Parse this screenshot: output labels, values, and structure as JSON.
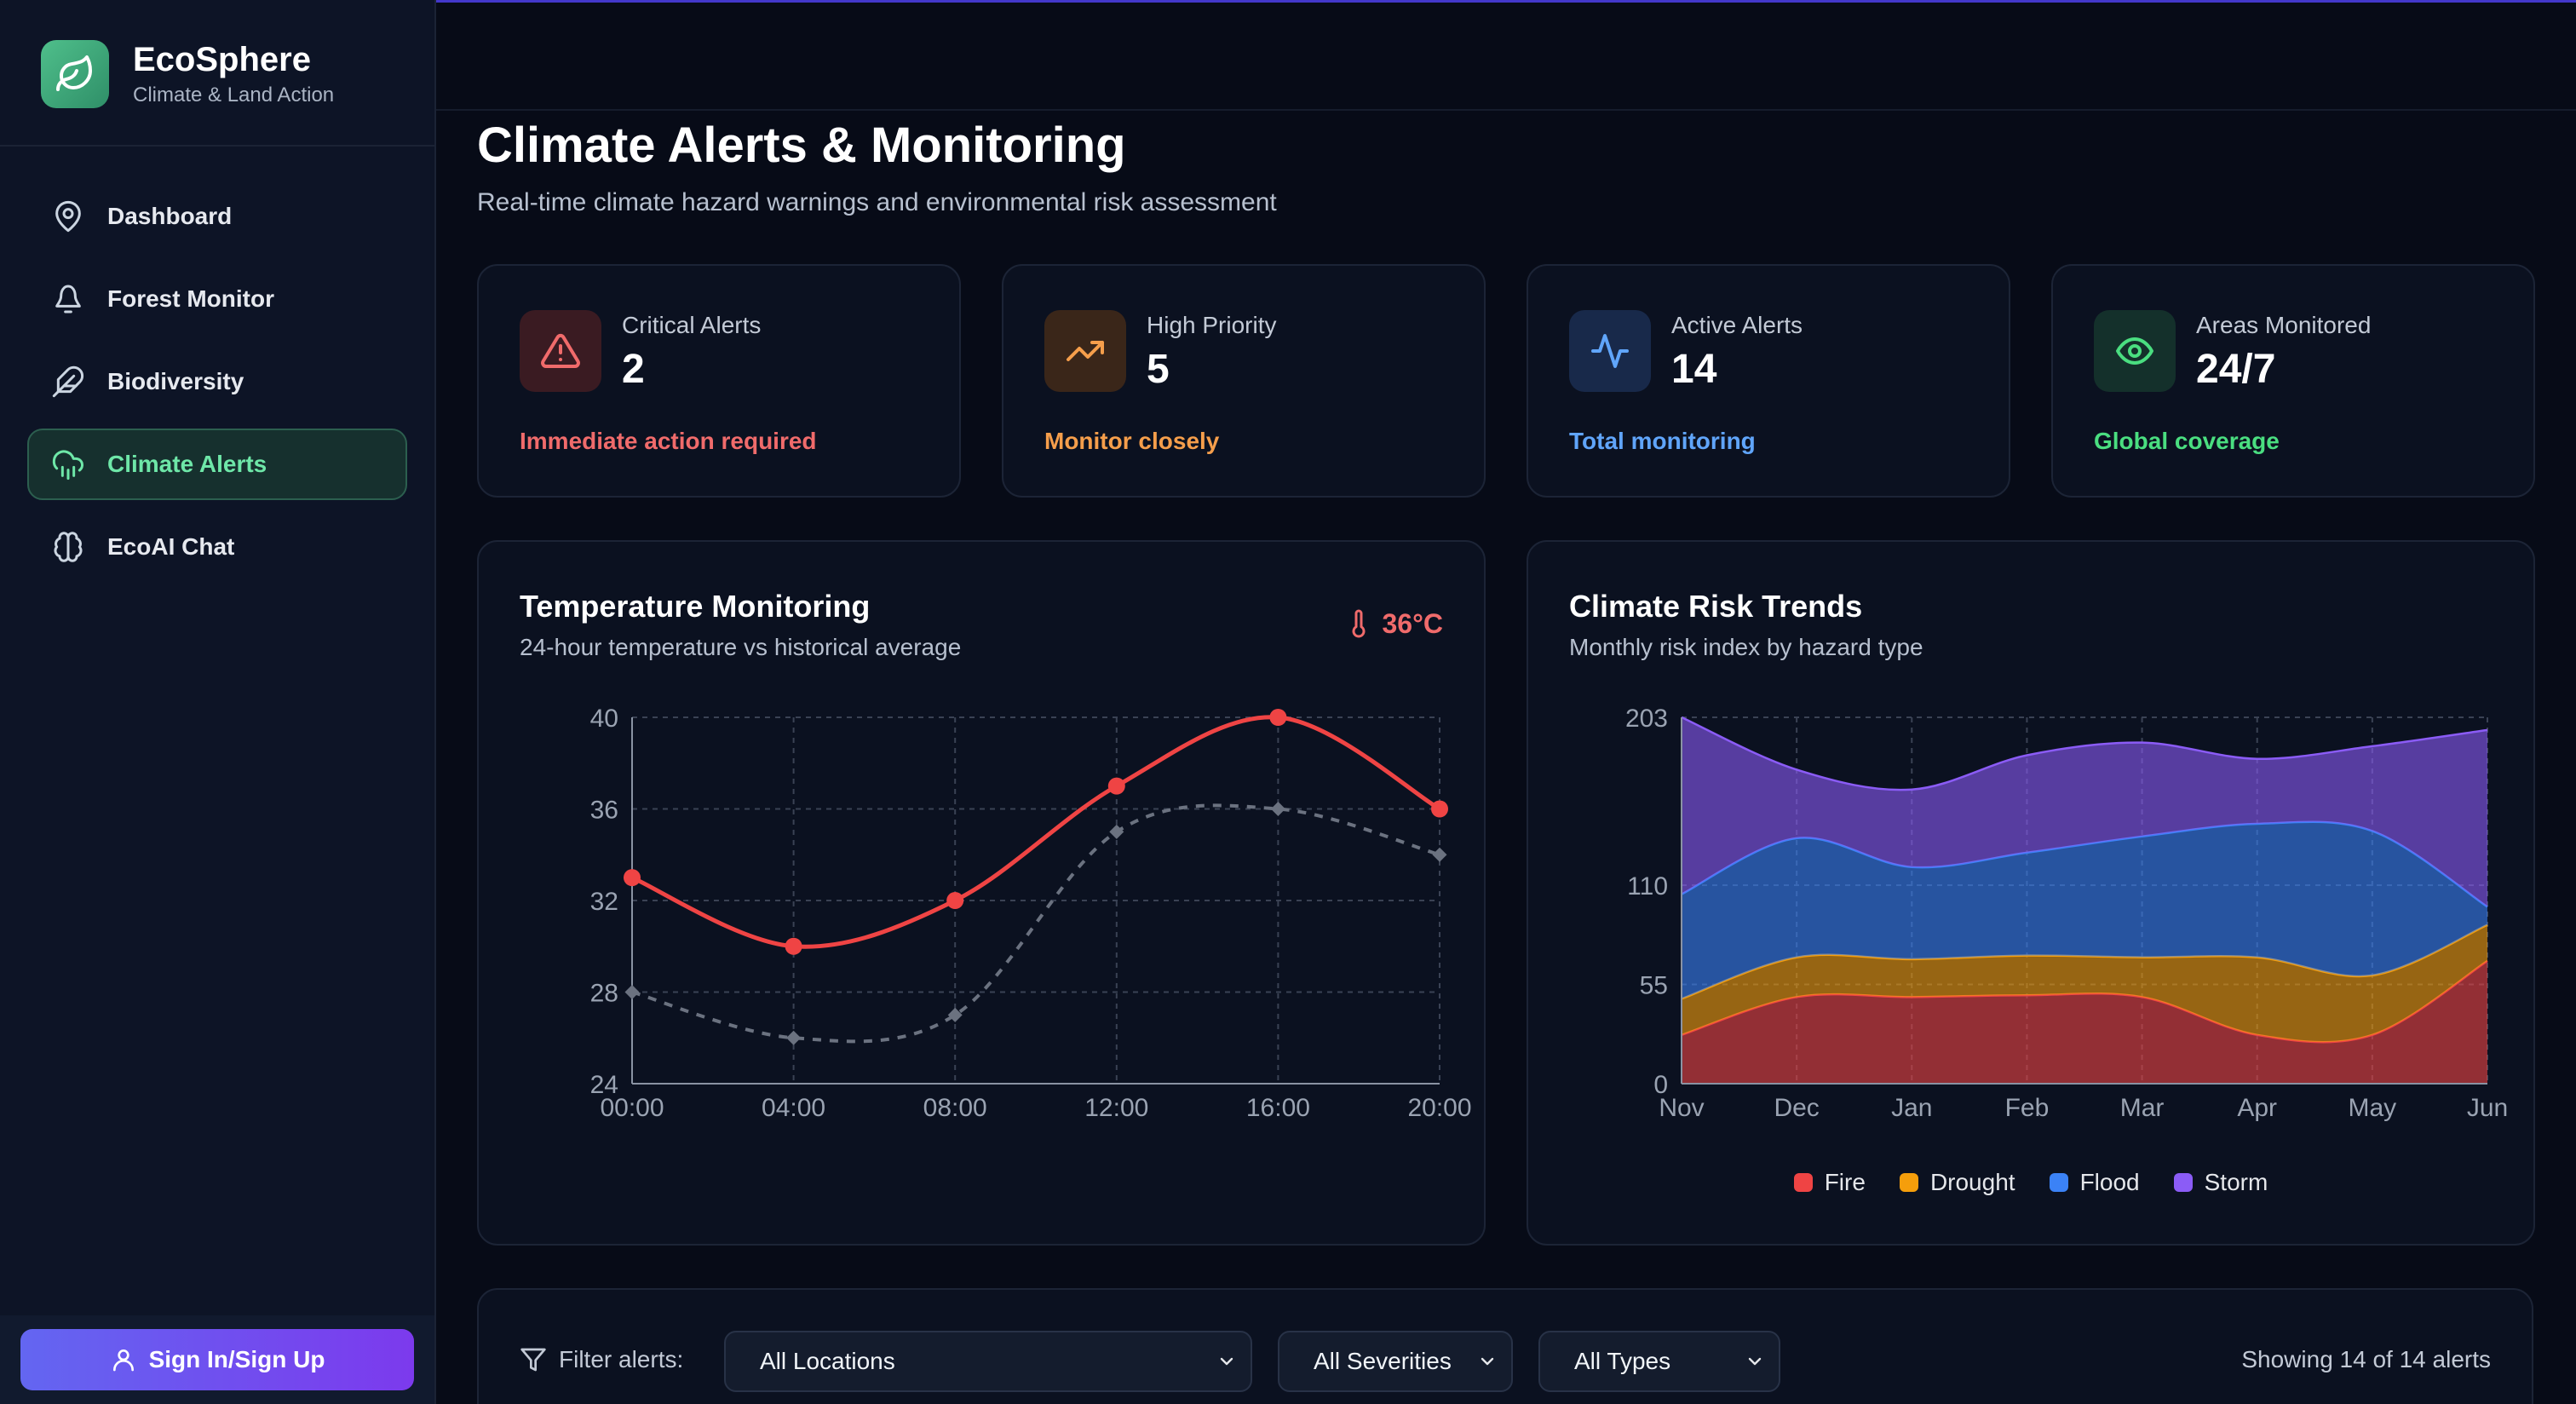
{
  "brand": {
    "name": "EcoSphere",
    "subtitle": "Climate & Land Action"
  },
  "sidebar": {
    "items": [
      {
        "label": "Dashboard",
        "icon": "map-pin-icon",
        "active": false
      },
      {
        "label": "Forest Monitor",
        "icon": "tree-icon",
        "active": false
      },
      {
        "label": "Biodiversity",
        "icon": "feather-icon",
        "active": false
      },
      {
        "label": "Climate Alerts",
        "icon": "cloud-rain-icon",
        "active": true
      },
      {
        "label": "EcoAI Chat",
        "icon": "brain-icon",
        "active": false
      }
    ],
    "signin_label": "Sign In/Sign Up"
  },
  "page": {
    "title": "Climate Alerts & Monitoring",
    "subtitle": "Real-time climate hazard warnings and environmental risk assessment"
  },
  "stats": [
    {
      "label": "Critical Alerts",
      "value": "2",
      "note": "Immediate action required",
      "icon": "alert-triangle-icon",
      "color": "#f06b6b",
      "bg": "#3a1b22"
    },
    {
      "label": "High Priority",
      "value": "5",
      "note": "Monitor closely",
      "icon": "trending-up-icon",
      "color": "#f59e4b",
      "bg": "#3a2619"
    },
    {
      "label": "Active Alerts",
      "value": "14",
      "note": "Total monitoring",
      "icon": "activity-icon",
      "color": "#60a5fa",
      "bg": "#18294a"
    },
    {
      "label": "Areas Monitored",
      "value": "24/7",
      "note": "Global coverage",
      "icon": "eye-icon",
      "color": "#4ade80",
      "bg": "#14302b"
    }
  ],
  "temperature_card": {
    "title": "Temperature Monitoring",
    "subtitle": "24-hour temperature vs historical average",
    "current": "36°C"
  },
  "risk_card": {
    "title": "Climate Risk Trends",
    "subtitle": "Monthly risk index by hazard type"
  },
  "chart_data": [
    {
      "type": "line",
      "x": [
        "00:00",
        "04:00",
        "08:00",
        "12:00",
        "16:00",
        "20:00"
      ],
      "ylim": [
        24,
        40
      ],
      "yticks": [
        24,
        28,
        32,
        36,
        40
      ],
      "grid": true,
      "series": [
        {
          "values": [
            33,
            30,
            32,
            37,
            40,
            36
          ],
          "color": "#ef4444",
          "style": "solid"
        },
        {
          "values": [
            28,
            26,
            27,
            35,
            36,
            34
          ],
          "color": "#6b7280",
          "style": "dashed"
        }
      ]
    },
    {
      "type": "area",
      "stacked": true,
      "categories": [
        "Nov",
        "Dec",
        "Jan",
        "Feb",
        "Mar",
        "Apr",
        "May",
        "Jun"
      ],
      "ylim": [
        0,
        203
      ],
      "yticks": [
        0,
        55,
        110,
        203
      ],
      "grid": true,
      "legend": "bottom",
      "series": [
        {
          "name": "Fire",
          "values": [
            27,
            48,
            48,
            49,
            48,
            27,
            27,
            68
          ],
          "color": "#ef4444"
        },
        {
          "name": "Drought",
          "values": [
            20,
            22,
            21,
            22,
            22,
            43,
            33,
            20
          ],
          "color": "#f59e0b"
        },
        {
          "name": "Flood",
          "values": [
            58,
            66,
            51,
            57,
            67,
            74,
            80,
            10
          ],
          "color": "#3b82f6"
        },
        {
          "name": "Storm",
          "values": [
            98,
            38,
            43,
            54,
            52,
            36,
            47,
            98
          ],
          "color": "#8b5cf6"
        }
      ]
    }
  ],
  "filters": {
    "label": "Filter alerts:",
    "location": "All Locations",
    "severity": "All Severities",
    "type": "All Types",
    "showing": "Showing 14 of 14 alerts"
  }
}
